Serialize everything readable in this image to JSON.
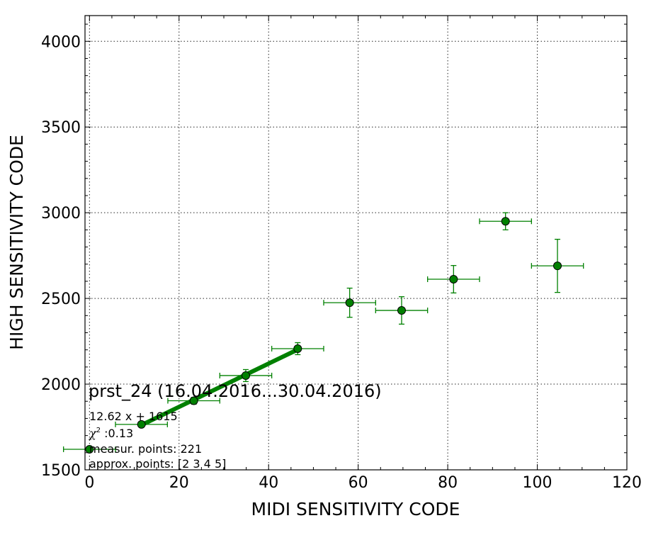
{
  "chart_data": {
    "type": "scatter",
    "xlabel": "MIDI SENSITIVITY CODE",
    "ylabel": "HIGH SENSITIVITY CODE",
    "xlim": [
      -1,
      120
    ],
    "ylim": [
      1500,
      4150
    ],
    "x_ticks": [
      0,
      20,
      40,
      60,
      80,
      100,
      120
    ],
    "y_ticks": [
      1500,
      2000,
      2500,
      3000,
      3500,
      4000
    ],
    "grid": true,
    "colors": {
      "marker": "#008000",
      "marker_edge": "#000000",
      "error_bars": "#008000",
      "fit_line": "#008000"
    },
    "points": [
      {
        "x": 0,
        "y": 1620,
        "xerr": 5.8,
        "yerr": 0
      },
      {
        "x": 11.6,
        "y": 1765,
        "xerr": 5.8,
        "yerr": 12
      },
      {
        "x": 23.3,
        "y": 1903,
        "xerr": 5.8,
        "yerr": 20
      },
      {
        "x": 34.9,
        "y": 2050,
        "xerr": 5.8,
        "yerr": 35
      },
      {
        "x": 46.5,
        "y": 2207,
        "xerr": 5.8,
        "yerr": 35
      },
      {
        "x": 58.1,
        "y": 2475,
        "xerr": 5.8,
        "yerr": 85
      },
      {
        "x": 69.7,
        "y": 2430,
        "xerr": 5.8,
        "yerr": 80
      },
      {
        "x": 81.3,
        "y": 2612,
        "xerr": 5.8,
        "yerr": 80
      },
      {
        "x": 92.9,
        "y": 2950,
        "xerr": 5.8,
        "yerr": 50
      },
      {
        "x": 104.5,
        "y": 2690,
        "xerr": 5.8,
        "yerr": 155
      }
    ],
    "fit": {
      "slope": 12.62,
      "intercept": 1615,
      "x_range": [
        11.6,
        46.5
      ]
    },
    "annotation": {
      "title": "prst_24 (16.04.2016...30.04.2016)",
      "equation": "12.62 x + 1615",
      "chi2_symbol": "χ",
      "chi2_exp": "2",
      "chi2_value": " :0.13",
      "measured": "measur. points: 221",
      "approx": "approx. points: [2 3 4 5]"
    }
  }
}
